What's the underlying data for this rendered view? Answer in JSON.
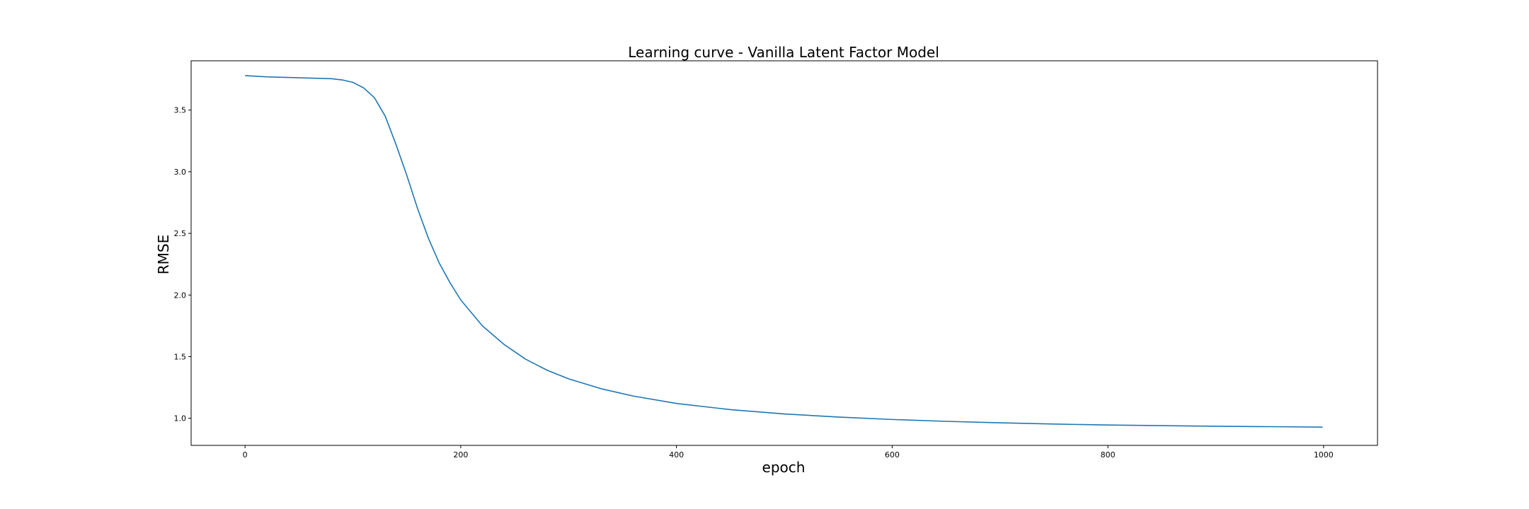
{
  "chart_data": {
    "type": "line",
    "title": "Learning curve - Vanilla Latent Factor Model",
    "xlabel": "epoch",
    "ylabel": "RMSE",
    "xlim": [
      -50,
      1050
    ],
    "ylim": [
      0.78,
      3.9
    ],
    "xticks": [
      0,
      200,
      400,
      600,
      800,
      1000
    ],
    "yticks": [
      1.0,
      1.5,
      2.0,
      2.5,
      3.0,
      3.5
    ],
    "xtick_labels": [
      "0",
      "200",
      "400",
      "600",
      "800",
      "1000"
    ],
    "ytick_labels": [
      "1.0",
      "1.5",
      "2.0",
      "2.5",
      "3.0",
      "3.5"
    ],
    "grid": false,
    "series": [
      {
        "color": "#1f77b4",
        "x": [
          0,
          20,
          40,
          60,
          80,
          90,
          100,
          110,
          120,
          130,
          140,
          150,
          160,
          170,
          180,
          190,
          200,
          220,
          240,
          260,
          280,
          300,
          330,
          360,
          400,
          450,
          500,
          550,
          600,
          650,
          700,
          750,
          800,
          850,
          900,
          950,
          999
        ],
        "y": [
          3.78,
          3.77,
          3.765,
          3.76,
          3.755,
          3.745,
          3.725,
          3.68,
          3.6,
          3.45,
          3.22,
          2.97,
          2.7,
          2.46,
          2.26,
          2.1,
          1.96,
          1.75,
          1.6,
          1.48,
          1.39,
          1.32,
          1.24,
          1.18,
          1.12,
          1.07,
          1.035,
          1.01,
          0.99,
          0.975,
          0.963,
          0.953,
          0.945,
          0.94,
          0.935,
          0.932,
          0.928
        ]
      }
    ]
  }
}
